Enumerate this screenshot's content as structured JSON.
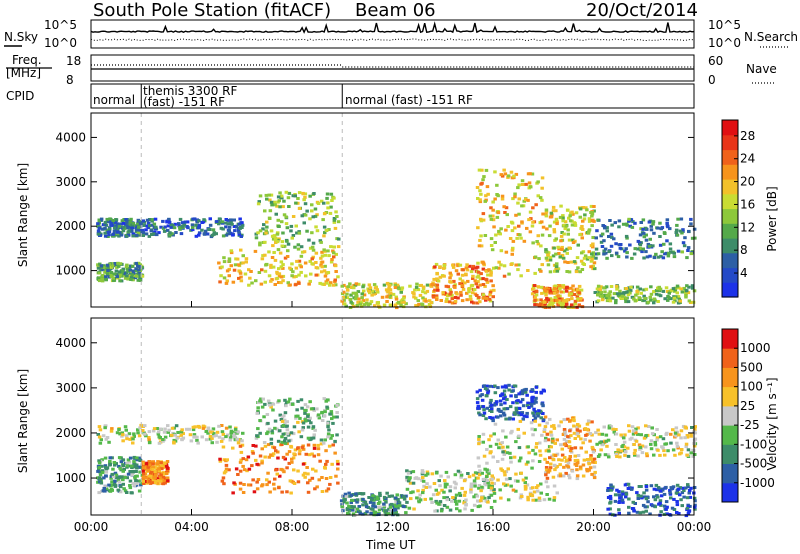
{
  "header": {
    "station": "South Pole Station (fitACF)",
    "beam": "Beam 06",
    "date": "20/Oct/2014"
  },
  "noise_panel": {
    "left_label": "N.Sky",
    "right_label": "N.Search",
    "left_ticks": [
      "10^5",
      "10^0"
    ],
    "right_ticks": [
      "10^5",
      "10^0"
    ]
  },
  "freq_panel": {
    "left_label_line1": "Freq.",
    "left_label_line2": "[MHz]",
    "right_label": "Nave",
    "left_ticks": [
      "18",
      "8"
    ],
    "right_ticks": [
      "60",
      "0"
    ]
  },
  "cpid_panel": {
    "label": "CPID",
    "segments": [
      {
        "line1": "normal",
        "line2": "",
        "start_hour": 0,
        "end_hour": 2
      },
      {
        "line1": "themis 3300 RF",
        "line2": "(fast) -151 RF",
        "start_hour": 2,
        "end_hour": 10
      },
      {
        "line1": "normal (fast) -151 RF",
        "line2": "",
        "start_hour": 10,
        "end_hour": 24
      }
    ]
  },
  "x_axis": {
    "label": "Time UT",
    "ticks": [
      "00:00",
      "04:00",
      "08:00",
      "12:00",
      "16:00",
      "20:00",
      "00:00"
    ]
  },
  "chart_data": [
    {
      "type": "heatmap",
      "name": "power-panel",
      "ylabel": "Slant Range [km]",
      "yticks": [
        1000,
        2000,
        3000,
        4000
      ],
      "ylim": [
        180,
        4550
      ],
      "xlim": [
        0,
        24
      ],
      "colorbar_label": "Power [dB]",
      "colorbar_ticks": [
        "28",
        "24",
        "20",
        "16",
        "12",
        "8",
        "4"
      ],
      "colorbar_colors": [
        "#1c32e8",
        "#2449c7",
        "#2d5fa5",
        "#3d8c69",
        "#54a94a",
        "#8dc83a",
        "#c9dc33",
        "#f2c12a",
        "#f7941c",
        "#f0621a",
        "#e83418",
        "#e00f12"
      ],
      "regions": [
        {
          "x0": 0.2,
          "x1": 2.0,
          "y0": 1800,
          "y1": 2200,
          "level": 0.25
        },
        {
          "x0": 0.2,
          "x1": 2.0,
          "y0": 800,
          "y1": 1200,
          "level": 0.35
        },
        {
          "x0": 2.0,
          "x1": 6.0,
          "y0": 1800,
          "y1": 2200,
          "level": 0.2
        },
        {
          "x0": 5.0,
          "x1": 9.8,
          "y0": 700,
          "y1": 1500,
          "level": 0.6
        },
        {
          "x0": 6.5,
          "x1": 9.8,
          "y0": 1500,
          "y1": 2800,
          "level": 0.45
        },
        {
          "x0": 9.9,
          "x1": 13.5,
          "y0": 200,
          "y1": 750,
          "level": 0.55
        },
        {
          "x0": 13.5,
          "x1": 16.0,
          "y0": 300,
          "y1": 1200,
          "level": 0.7
        },
        {
          "x0": 15.3,
          "x1": 18.0,
          "y0": 900,
          "y1": 3300,
          "level": 0.6
        },
        {
          "x0": 17.5,
          "x1": 19.5,
          "y0": 200,
          "y1": 700,
          "level": 0.7
        },
        {
          "x0": 18.0,
          "x1": 20.0,
          "y0": 1000,
          "y1": 2500,
          "level": 0.55
        },
        {
          "x0": 20.0,
          "x1": 24.0,
          "y0": 1300,
          "y1": 2200,
          "level": 0.25
        },
        {
          "x0": 20.0,
          "x1": 24.0,
          "y0": 300,
          "y1": 700,
          "level": 0.45
        }
      ]
    },
    {
      "type": "heatmap",
      "name": "velocity-panel",
      "ylabel": "Slant Range [km]",
      "yticks": [
        1000,
        2000,
        3000,
        4000
      ],
      "ylim": [
        180,
        4550
      ],
      "xlim": [
        0,
        24
      ],
      "colorbar_label": "Velocity [m s⁻¹]",
      "colorbar_ticks": [
        "1000",
        "500",
        "100",
        "25",
        "-25",
        "-100",
        "-500",
        "-1000"
      ],
      "colorbar_colors": [
        "#1c32e8",
        "#2d5fa5",
        "#3d8c69",
        "#54b84a",
        "#c8c8c8",
        "#f7c12a",
        "#f7941c",
        "#f0621a",
        "#e00f12"
      ],
      "regions": [
        {
          "x0": 0.2,
          "x1": 6.0,
          "y0": 1800,
          "y1": 2200,
          "level": 0.5
        },
        {
          "x0": 0.2,
          "x1": 2.0,
          "y0": 700,
          "y1": 1500,
          "level": 0.3
        },
        {
          "x0": 2.0,
          "x1": 3.0,
          "y0": 900,
          "y1": 1400,
          "level": 0.75
        },
        {
          "x0": 5.0,
          "x1": 9.8,
          "y0": 700,
          "y1": 1800,
          "level": 0.75
        },
        {
          "x0": 6.5,
          "x1": 9.8,
          "y0": 1800,
          "y1": 2800,
          "level": 0.4
        },
        {
          "x0": 9.9,
          "x1": 12.5,
          "y0": 200,
          "y1": 700,
          "level": 0.3
        },
        {
          "x0": 12.5,
          "x1": 16.0,
          "y0": 300,
          "y1": 1200,
          "level": 0.45
        },
        {
          "x0": 15.3,
          "x1": 18.0,
          "y0": 2300,
          "y1": 3100,
          "level": 0.15
        },
        {
          "x0": 15.3,
          "x1": 18.5,
          "y0": 500,
          "y1": 2300,
          "level": 0.5
        },
        {
          "x0": 18.0,
          "x1": 20.0,
          "y0": 1000,
          "y1": 2400,
          "level": 0.65
        },
        {
          "x0": 20.0,
          "x1": 24.0,
          "y0": 1500,
          "y1": 2200,
          "level": 0.5
        },
        {
          "x0": 20.5,
          "x1": 24.0,
          "y0": 200,
          "y1": 900,
          "level": 0.15
        }
      ]
    }
  ]
}
